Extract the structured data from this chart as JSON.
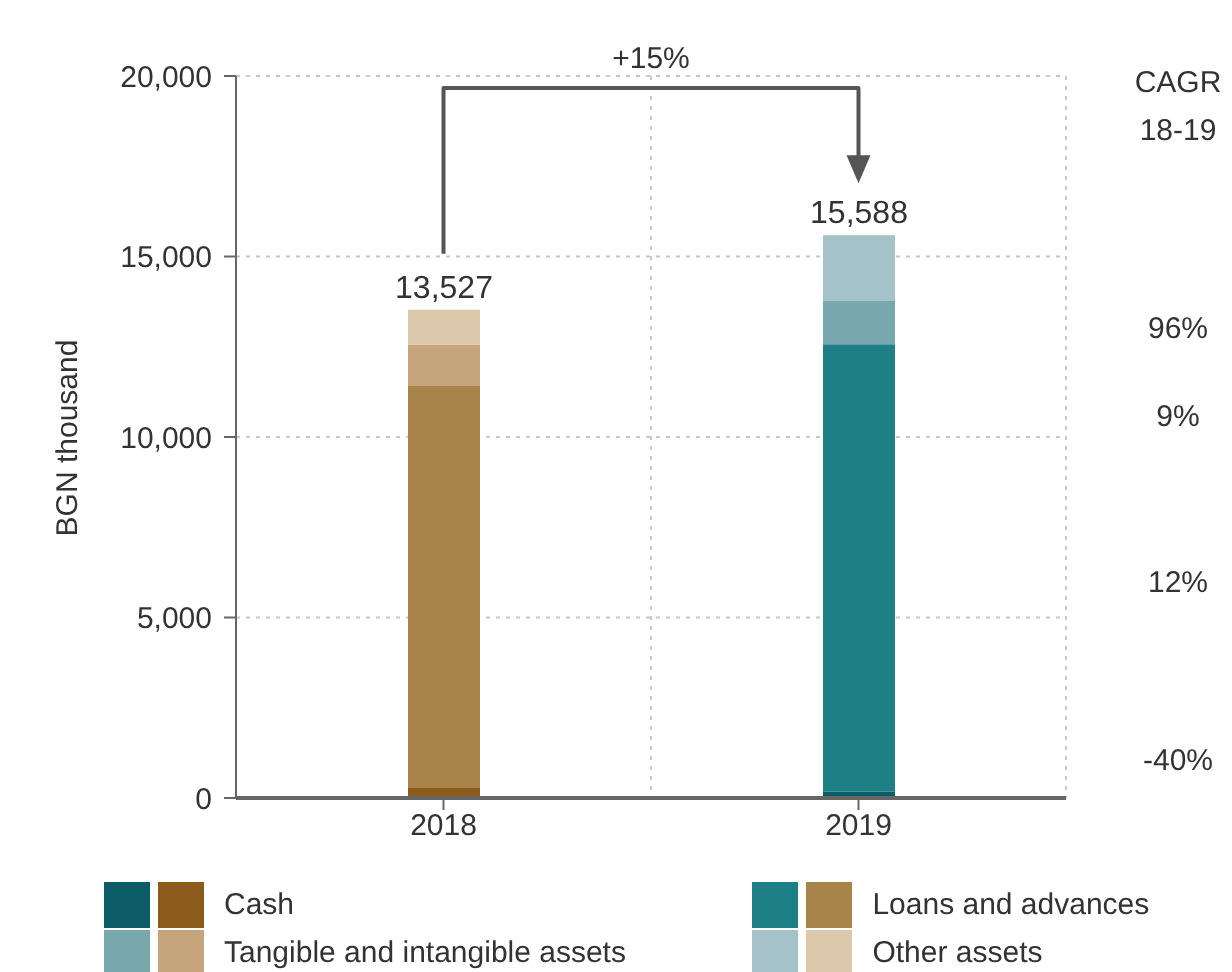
{
  "chart_data": {
    "type": "bar",
    "stacked": true,
    "ylabel": "BGN thousand",
    "categories": [
      "2018",
      "2019"
    ],
    "series": [
      {
        "name": "Cash",
        "colors": [
          "#8c5a1a",
          "#0b5c66"
        ],
        "values": [
          280,
          170
        ]
      },
      {
        "name": "Loans and advances",
        "colors": [
          "#a8834a",
          "#1e7f87"
        ],
        "values": [
          11130,
          12400
        ]
      },
      {
        "name": "Tangible and intangible assets",
        "colors": [
          "#c6a57c",
          "#78a7ad"
        ],
        "values": [
          1150,
          1200
        ]
      },
      {
        "name": "Other assets",
        "colors": [
          "#dcc9ab",
          "#a4c2c8"
        ],
        "values": [
          967,
          1818
        ]
      }
    ],
    "totals": [
      "13,527",
      "15,588"
    ],
    "ylim": [
      0,
      20000
    ],
    "yticks": [
      {
        "value": 0,
        "label": "0"
      },
      {
        "value": 5000,
        "label": "5,000"
      },
      {
        "value": 10000,
        "label": "10,000"
      },
      {
        "value": 15000,
        "label": "15,000"
      },
      {
        "value": 20000,
        "label": "20,000"
      }
    ],
    "grid": true,
    "legend": "bottom",
    "annotations": [
      "+15%",
      "CAGR\n18-19",
      "-40%",
      "12%",
      "9%",
      "96%"
    ]
  }
}
